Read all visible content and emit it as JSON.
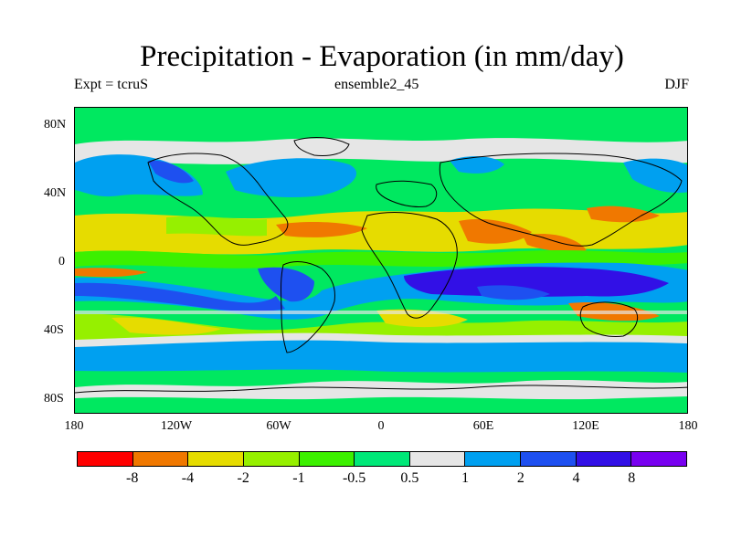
{
  "title": "Precipitation - Evaporation (in mm/day)",
  "subtitle_left": "Expt = tcruS",
  "subtitle_center": "ensemble2_45",
  "subtitle_right": "DJF",
  "lat_labels": [
    "80N",
    "40N",
    "0",
    "40S",
    "80S"
  ],
  "lon_labels": [
    "180",
    "120W",
    "60W",
    "0",
    "60E",
    "120E",
    "180"
  ],
  "colorbar": {
    "colors": [
      "#ff0000",
      "#f07800",
      "#e6dc00",
      "#96f000",
      "#3cf000",
      "#00e878",
      "#e6e6e6",
      "#00a0f0",
      "#1e50f0",
      "#3210e6",
      "#7800f0"
    ],
    "labels": [
      "-8",
      "-4",
      "-2",
      "-1",
      "-0.5",
      "0.5",
      "1",
      "2",
      "4",
      "8"
    ]
  },
  "map_colors": {
    "ocean_base": "#00e860",
    "light_green": "#96f000",
    "green": "#3cf000",
    "yellow": "#e6dc00",
    "orange": "#f07800",
    "red": "#ff0000",
    "gray": "#e6e6e6",
    "light_blue": "#00a0f0",
    "blue": "#1e50f0",
    "dark_blue": "#3210e6",
    "coast": "#000000"
  }
}
